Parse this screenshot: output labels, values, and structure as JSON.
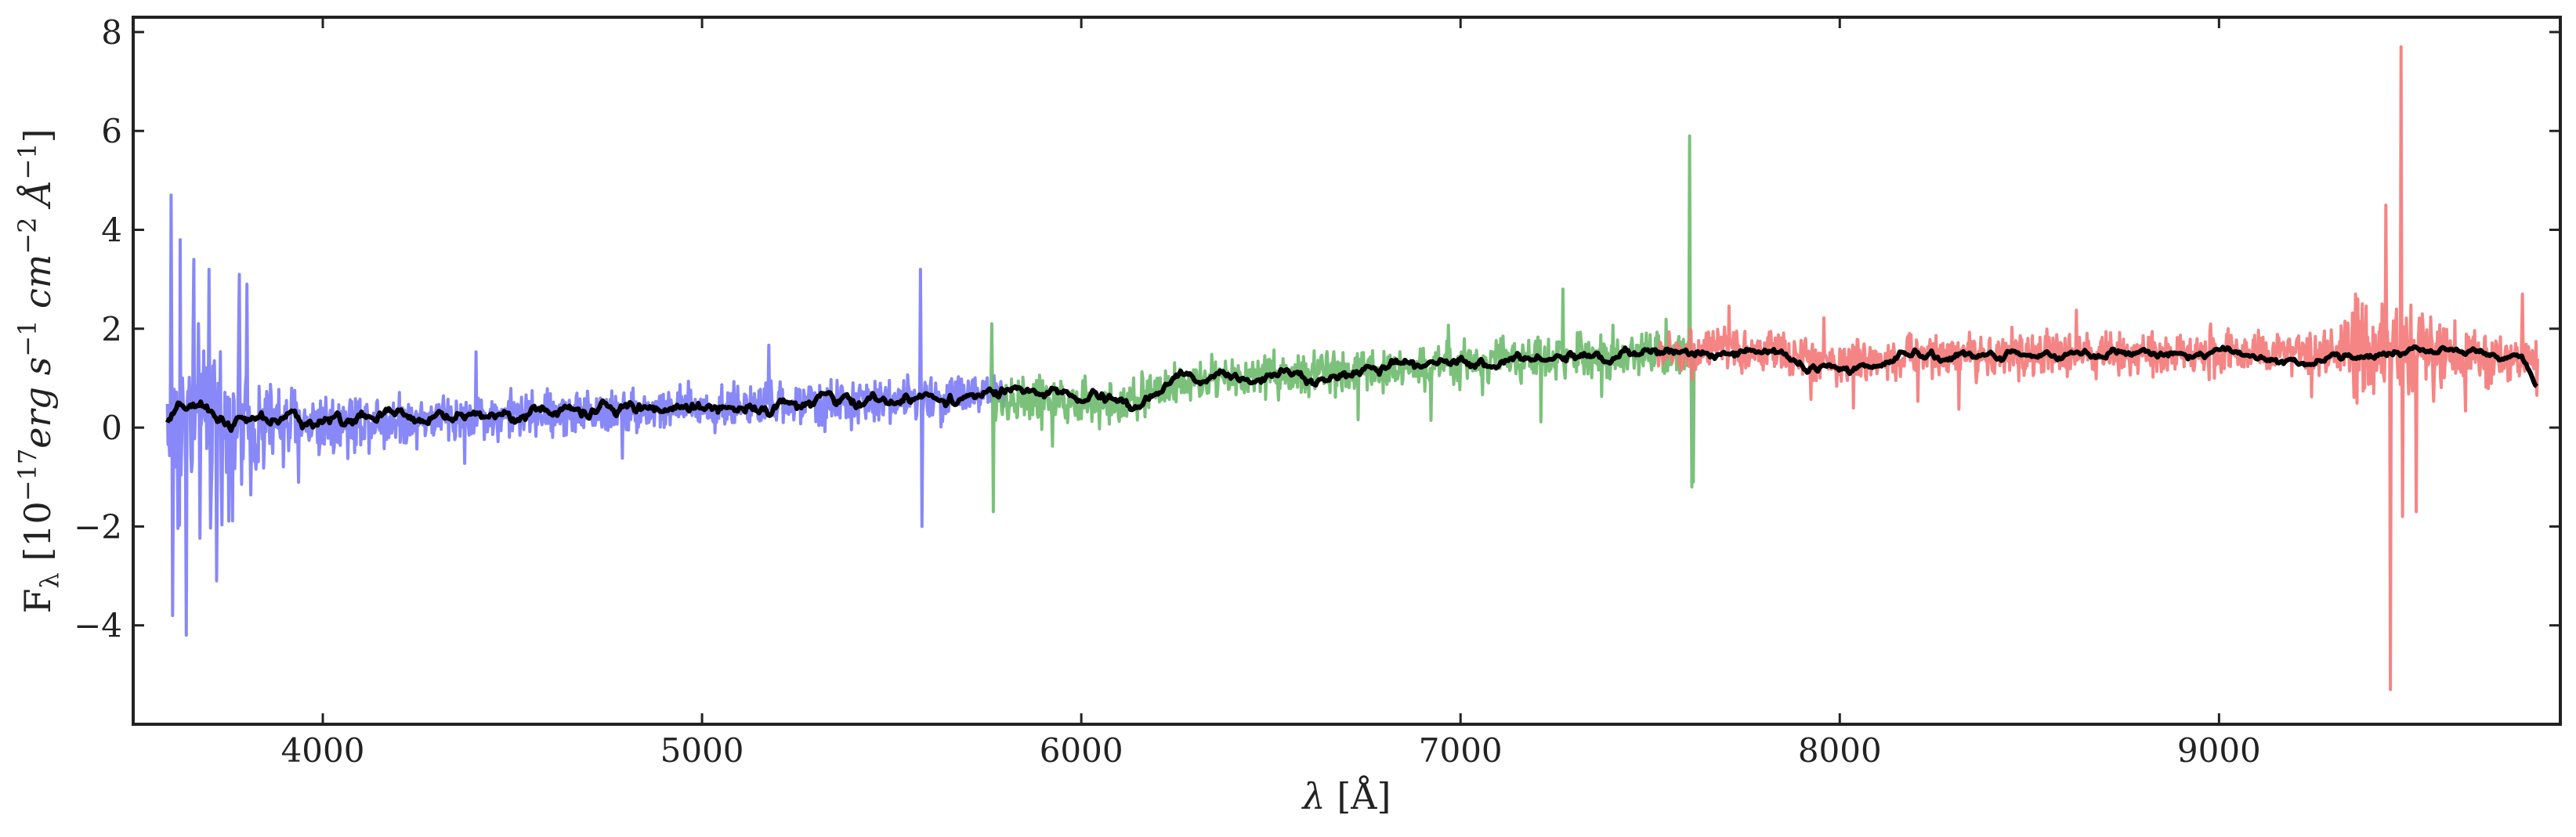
{
  "chart_data": {
    "type": "line",
    "xlabel": "λ [Å]",
    "ylabel": "Fλ [10⁻¹⁷ erg s⁻¹ cm⁻² Å⁻¹]",
    "ylabel_parts": {
      "main": "F",
      "sub": "λ",
      "open": " [10",
      "exp1": "−17",
      "erg": "erg s",
      "exp2": "−1",
      "cm": " cm",
      "exp3": "−2",
      "ang": " Å",
      "exp4": "−1",
      "close": "]"
    },
    "xlabel_parts": {
      "sym": "λ",
      "rest": " [Å]"
    },
    "xlim": [
      3500,
      9900
    ],
    "ylim": [
      -6.0,
      8.3
    ],
    "x_ticks": [
      4000,
      5000,
      6000,
      7000,
      8000,
      9000
    ],
    "y_ticks": [
      -4,
      -2,
      0,
      2,
      4,
      6,
      8
    ],
    "grid": false,
    "legend": "none",
    "series": [
      {
        "color": "#7b7bf7",
        "x_range": [
          3590,
          5800
        ],
        "base_points": [
          [
            3590,
            0.05
          ],
          [
            3700,
            0.05
          ],
          [
            4000,
            0.12
          ],
          [
            4500,
            0.25
          ],
          [
            5000,
            0.4
          ],
          [
            5500,
            0.55
          ],
          [
            5800,
            0.7
          ]
        ],
        "noise_points": [
          [
            3590,
            1.8
          ],
          [
            3700,
            1.2
          ],
          [
            3900,
            0.55
          ],
          [
            4200,
            0.35
          ],
          [
            5000,
            0.3
          ],
          [
            5800,
            0.3
          ]
        ],
        "spikes": [
          [
            3600,
            4.7
          ],
          [
            3605,
            -3.8
          ],
          [
            3625,
            3.8
          ],
          [
            3640,
            -4.2
          ],
          [
            3660,
            3.4
          ],
          [
            3700,
            3.2
          ],
          [
            3720,
            -3.1
          ],
          [
            3780,
            3.1
          ],
          [
            3800,
            2.9
          ],
          [
            5577,
            3.2
          ],
          [
            5580,
            -2.0
          ]
        ]
      },
      {
        "color": "#6dba6d",
        "x_range": [
          5760,
          7620
        ],
        "base_points": [
          [
            5760,
            0.6
          ],
          [
            6000,
            0.5
          ],
          [
            6100,
            0.45
          ],
          [
            6250,
            0.9
          ],
          [
            6500,
            1.05
          ],
          [
            6800,
            1.15
          ],
          [
            7000,
            1.3
          ],
          [
            7300,
            1.45
          ],
          [
            7620,
            1.5
          ]
        ],
        "noise_points": [
          [
            5760,
            0.35
          ],
          [
            6500,
            0.28
          ],
          [
            7620,
            0.3
          ]
        ],
        "spikes": [
          [
            5765,
            2.1
          ],
          [
            5768,
            -1.7
          ],
          [
            7270,
            2.8
          ],
          [
            7605,
            5.9
          ],
          [
            7610,
            -1.2
          ],
          [
            7615,
            -1.1
          ]
        ]
      },
      {
        "color": "#f47878",
        "x_range": [
          7520,
          9840
        ],
        "base_points": [
          [
            7520,
            1.5
          ],
          [
            7800,
            1.55
          ],
          [
            8000,
            1.3
          ],
          [
            8200,
            1.45
          ],
          [
            8600,
            1.5
          ],
          [
            9000,
            1.5
          ],
          [
            9300,
            1.45
          ],
          [
            9500,
            1.55
          ],
          [
            9840,
            1.3
          ]
        ],
        "noise_points": [
          [
            7520,
            0.3
          ],
          [
            9250,
            0.3
          ],
          [
            9400,
            0.75
          ],
          [
            9600,
            0.45
          ],
          [
            9840,
            0.35
          ]
        ],
        "spikes": [
          [
            9440,
            4.5
          ],
          [
            9452,
            -5.3
          ],
          [
            9480,
            7.7
          ],
          [
            9485,
            -1.8
          ],
          [
            9520,
            -1.7
          ],
          [
            9360,
            2.7
          ],
          [
            9800,
            2.7
          ]
        ]
      },
      {
        "color": "#000000",
        "x_range": [
          3590,
          9840
        ],
        "base_points": [
          [
            3590,
            0.1
          ],
          [
            3650,
            0.45
          ],
          [
            3700,
            0.2
          ],
          [
            3800,
            0.1
          ],
          [
            4000,
            0.15
          ],
          [
            4500,
            0.28
          ],
          [
            5000,
            0.42
          ],
          [
            5500,
            0.55
          ],
          [
            5800,
            0.7
          ],
          [
            6000,
            0.6
          ],
          [
            6150,
            0.45
          ],
          [
            6250,
            0.95
          ],
          [
            6500,
            1.05
          ],
          [
            6800,
            1.15
          ],
          [
            7000,
            1.3
          ],
          [
            7300,
            1.45
          ],
          [
            7550,
            1.5
          ],
          [
            7800,
            1.55
          ],
          [
            8000,
            1.1
          ],
          [
            8200,
            1.45
          ],
          [
            8600,
            1.5
          ],
          [
            9000,
            1.5
          ],
          [
            9250,
            1.3
          ],
          [
            9300,
            1.4
          ],
          [
            9500,
            1.6
          ],
          [
            9800,
            1.4
          ],
          [
            9840,
            0.8
          ]
        ],
        "noise_points": [
          [
            3590,
            0.12
          ],
          [
            9840,
            0.06
          ]
        ],
        "spikes": []
      }
    ]
  }
}
